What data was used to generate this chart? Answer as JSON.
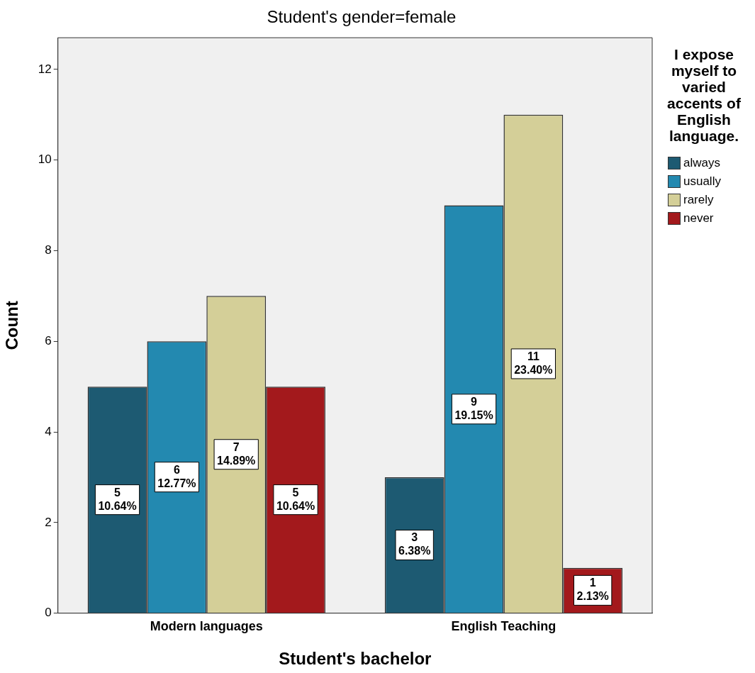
{
  "chart_data": {
    "type": "bar",
    "title": "Student's gender=female",
    "xlabel": "Student's bachelor",
    "ylabel": "Count",
    "legend_title": "I expose myself to varied accents of English language.",
    "categories": [
      "Modern languages",
      "English Teaching"
    ],
    "series": [
      {
        "name": "always",
        "color": "#1d5a72",
        "values": [
          5,
          3
        ],
        "value_labels": [
          "5\n10.64%",
          "3\n6.38%"
        ]
      },
      {
        "name": "usually",
        "color": "#2389b0",
        "values": [
          6,
          9
        ],
        "value_labels": [
          "6\n12.77%",
          "9\n19.15%"
        ]
      },
      {
        "name": "rarely",
        "color": "#d4cf98",
        "values": [
          7,
          11
        ],
        "value_labels": [
          "7\n14.89%",
          "11\n23.40%"
        ]
      },
      {
        "name": "never",
        "color": "#a3191c",
        "values": [
          5,
          1
        ],
        "value_labels": [
          "5\n10.64%",
          "1\n2.13%"
        ]
      }
    ],
    "ylim": [
      0,
      12.7
    ],
    "yticks": [
      0,
      2,
      4,
      6,
      8,
      10,
      12
    ],
    "grid": false,
    "legend": "right"
  }
}
